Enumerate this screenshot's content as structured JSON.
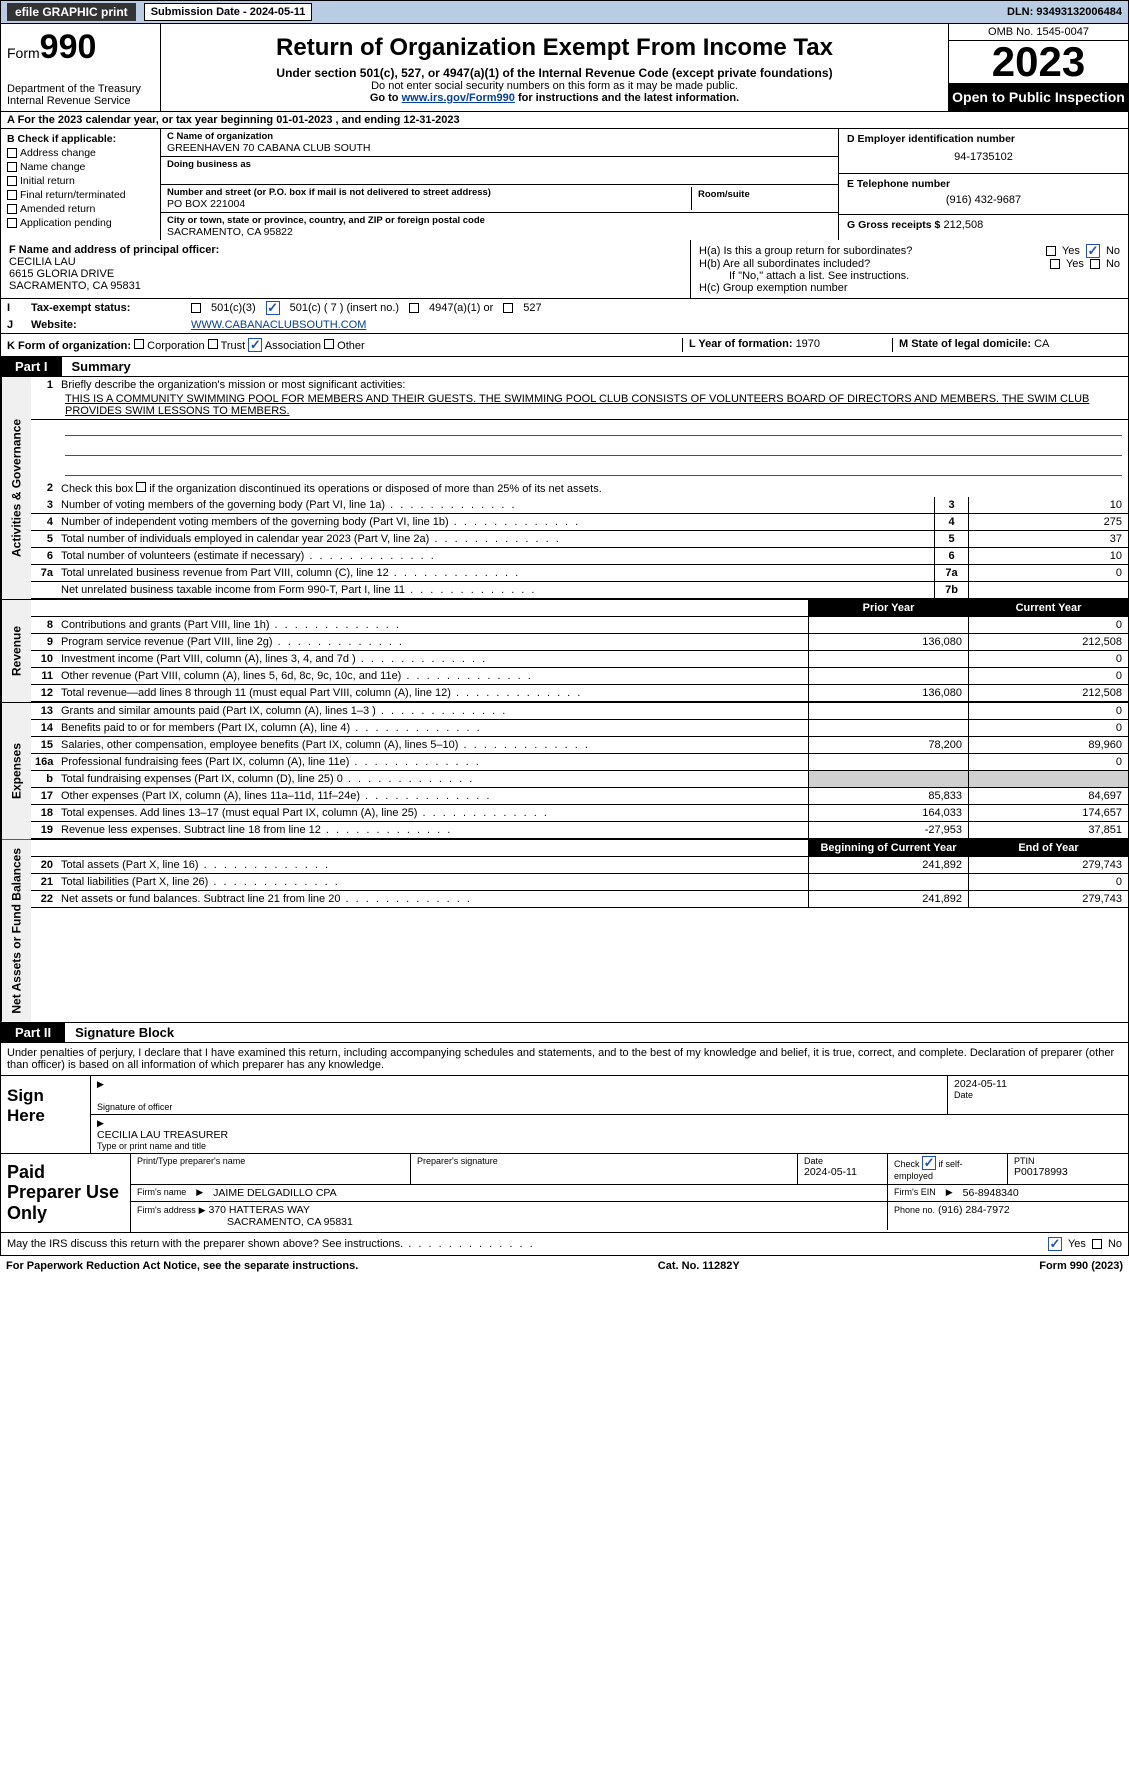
{
  "topbar": {
    "efile": "efile GRAPHIC print",
    "sub_date_label": "Submission Date - 2024-05-11",
    "dln": "DLN: 93493132006484"
  },
  "header": {
    "form_label": "Form",
    "form_no": "990",
    "dept": "Department of the Treasury\nInternal Revenue Service",
    "title": "Return of Organization Exempt From Income Tax",
    "sub1": "Under section 501(c), 527, or 4947(a)(1) of the Internal Revenue Code (except private foundations)",
    "sub2": "Do not enter social security numbers on this form as it may be made public.",
    "sub3_pre": "Go to ",
    "sub3_link": "www.irs.gov/Form990",
    "sub3_post": " for instructions and the latest information.",
    "omb": "OMB No. 1545-0047",
    "year": "2023",
    "open": "Open to Public Inspection"
  },
  "line_a": "A For the 2023 calendar year, or tax year beginning 01-01-2023    , and ending 12-31-2023",
  "box_b": {
    "hdr": "B Check if applicable:",
    "items": [
      "Address change",
      "Name change",
      "Initial return",
      "Final return/terminated",
      "Amended return",
      "Application pending"
    ]
  },
  "box_c": {
    "name_lbl": "C Name of organization",
    "name": "GREENHAVEN 70 CABANA CLUB SOUTH",
    "dba_lbl": "Doing business as",
    "street_lbl": "Number and street (or P.O. box if mail is not delivered to street address)",
    "street": "PO BOX 221004",
    "room_lbl": "Room/suite",
    "city_lbl": "City or town, state or province, country, and ZIP or foreign postal code",
    "city": "SACRAMENTO, CA  95822"
  },
  "box_d": {
    "ein_lbl": "D Employer identification number",
    "ein": "94-1735102",
    "tel_lbl": "E Telephone number",
    "tel": "(916) 432-9687",
    "gross_lbl": "G Gross receipts $",
    "gross": "212,508"
  },
  "box_f": {
    "lbl": "F Name and address of principal officer:",
    "name": "CECILIA LAU",
    "addr1": "6615 GLORIA DRIVE",
    "addr2": "SACRAMENTO, CA  95831"
  },
  "box_h": {
    "a": "H(a)  Is this a group return for subordinates?",
    "b": "H(b)  Are all subordinates included?",
    "b2": "If \"No,\" attach a list. See instructions.",
    "c": "H(c)  Group exemption number ",
    "yes": "Yes",
    "no": "No"
  },
  "line_i": {
    "lbl": "Tax-exempt status:",
    "o1": "501(c)(3)",
    "o2": "501(c) ( 7 ) (insert no.)",
    "o3": "4947(a)(1) or",
    "o4": "527"
  },
  "line_j": {
    "lbl": "Website: ",
    "val": "WWW.CABANACLUBSOUTH.COM"
  },
  "line_k": {
    "lbl": "K Form of organization:",
    "o": [
      "Corporation",
      "Trust",
      "Association",
      "Other"
    ]
  },
  "line_l": {
    "lbl": "L Year of formation: ",
    "val": "1970"
  },
  "line_m": {
    "lbl": "M State of legal domicile: ",
    "val": "CA"
  },
  "parts": {
    "p1": "Part I",
    "p1t": "Summary",
    "p2": "Part II",
    "p2t": "Signature Block"
  },
  "sections": {
    "gov": "Activities & Governance",
    "rev": "Revenue",
    "exp": "Expenses",
    "net": "Net Assets or Fund Balances"
  },
  "s1": {
    "l1_lbl": "Briefly describe the organization's mission or most significant activities:",
    "l1_txt": "THIS IS A COMMUNITY SWIMMING POOL FOR MEMBERS AND THEIR GUESTS. THE SWIMMING POOL CLUB CONSISTS OF VOLUNTEERS BOARD OF DIRECTORS AND MEMBERS. THE SWIM CLUB PROVIDES SWIM LESSONS TO MEMBERS.",
    "l2": "Check this box      if the organization discontinued its operations or disposed of more than 25% of its net assets.",
    "lines": [
      {
        "n": "3",
        "t": "Number of voting members of the governing body (Part VI, line 1a)",
        "bn": "3",
        "v": "10"
      },
      {
        "n": "4",
        "t": "Number of independent voting members of the governing body (Part VI, line 1b)",
        "bn": "4",
        "v": "275"
      },
      {
        "n": "5",
        "t": "Total number of individuals employed in calendar year 2023 (Part V, line 2a)",
        "bn": "5",
        "v": "37"
      },
      {
        "n": "6",
        "t": "Total number of volunteers (estimate if necessary)",
        "bn": "6",
        "v": "10"
      },
      {
        "n": "7a",
        "t": "Total unrelated business revenue from Part VIII, column (C), line 12",
        "bn": "7a",
        "v": "0"
      },
      {
        "n": "",
        "t": "Net unrelated business taxable income from Form 990-T, Part I, line 11",
        "bn": "7b",
        "v": ""
      }
    ]
  },
  "hdr_prior": "Prior Year",
  "hdr_current": "Current Year",
  "revenue": [
    {
      "n": "8",
      "t": "Contributions and grants (Part VIII, line 1h)",
      "pv": "",
      "cv": "0"
    },
    {
      "n": "9",
      "t": "Program service revenue (Part VIII, line 2g)",
      "pv": "136,080",
      "cv": "212,508"
    },
    {
      "n": "10",
      "t": "Investment income (Part VIII, column (A), lines 3, 4, and 7d )",
      "pv": "",
      "cv": "0"
    },
    {
      "n": "11",
      "t": "Other revenue (Part VIII, column (A), lines 5, 6d, 8c, 9c, 10c, and 11e)",
      "pv": "",
      "cv": "0"
    },
    {
      "n": "12",
      "t": "Total revenue—add lines 8 through 11 (must equal Part VIII, column (A), line 12)",
      "pv": "136,080",
      "cv": "212,508"
    }
  ],
  "expenses": [
    {
      "n": "13",
      "t": "Grants and similar amounts paid (Part IX, column (A), lines 1–3 )",
      "pv": "",
      "cv": "0"
    },
    {
      "n": "14",
      "t": "Benefits paid to or for members (Part IX, column (A), line 4)",
      "pv": "",
      "cv": "0"
    },
    {
      "n": "15",
      "t": "Salaries, other compensation, employee benefits (Part IX, column (A), lines 5–10)",
      "pv": "78,200",
      "cv": "89,960"
    },
    {
      "n": "16a",
      "t": "Professional fundraising fees (Part IX, column (A), line 11e)",
      "pv": "",
      "cv": "0"
    },
    {
      "n": "b",
      "t": "Total fundraising expenses (Part IX, column (D), line 25) 0",
      "pv": "GRAY",
      "cv": "GRAY"
    },
    {
      "n": "17",
      "t": "Other expenses (Part IX, column (A), lines 11a–11d, 11f–24e)",
      "pv": "85,833",
      "cv": "84,697"
    },
    {
      "n": "18",
      "t": "Total expenses. Add lines 13–17 (must equal Part IX, column (A), line 25)",
      "pv": "164,033",
      "cv": "174,657"
    },
    {
      "n": "19",
      "t": "Revenue less expenses. Subtract line 18 from line 12",
      "pv": "-27,953",
      "cv": "37,851"
    }
  ],
  "hdr_boy": "Beginning of Current Year",
  "hdr_eoy": "End of Year",
  "net": [
    {
      "n": "20",
      "t": "Total assets (Part X, line 16)",
      "pv": "241,892",
      "cv": "279,743"
    },
    {
      "n": "21",
      "t": "Total liabilities (Part X, line 26)",
      "pv": "",
      "cv": "0"
    },
    {
      "n": "22",
      "t": "Net assets or fund balances. Subtract line 21 from line 20",
      "pv": "241,892",
      "cv": "279,743"
    }
  ],
  "sig_intro": "Under penalties of perjury, I declare that I have examined this return, including accompanying schedules and statements, and to the best of my knowledge and belief, it is true, correct, and complete. Declaration of preparer (other than officer) is based on all information of which preparer has any knowledge.",
  "sign_here": "Sign Here",
  "sig": {
    "sig_lbl": "Signature of officer",
    "date_lbl": "Date",
    "date": "2024-05-11",
    "name": "CECILIA LAU  TREASURER",
    "name_lbl": "Type or print name and title"
  },
  "paid": "Paid Preparer Use Only",
  "prep": {
    "r1c1_lbl": "Print/Type preparer's name",
    "r1c2_lbl": "Preparer's signature",
    "r1c3_lbl": "Date",
    "r1c3": "2024-05-11",
    "r1c4_lbl": "Check        if self-employed",
    "r1c5_lbl": "PTIN",
    "r1c5": "P00178993",
    "r2_lbl": "Firm's name",
    "r2": "JAIME DELGADILLO CPA",
    "r2b_lbl": "Firm's EIN",
    "r2b": "56-8948340",
    "r3_lbl": "Firm's address",
    "r3": "370 HATTERAS WAY",
    "r3b": "SACRAMENTO, CA  95831",
    "r3c_lbl": "Phone no.",
    "r3c": "(916) 284-7972"
  },
  "discuss": "May the IRS discuss this return with the preparer shown above? See instructions.",
  "footer": {
    "l": "For Paperwork Reduction Act Notice, see the separate instructions.",
    "m": "Cat. No. 11282Y",
    "r": "Form 990 (2023)"
  }
}
